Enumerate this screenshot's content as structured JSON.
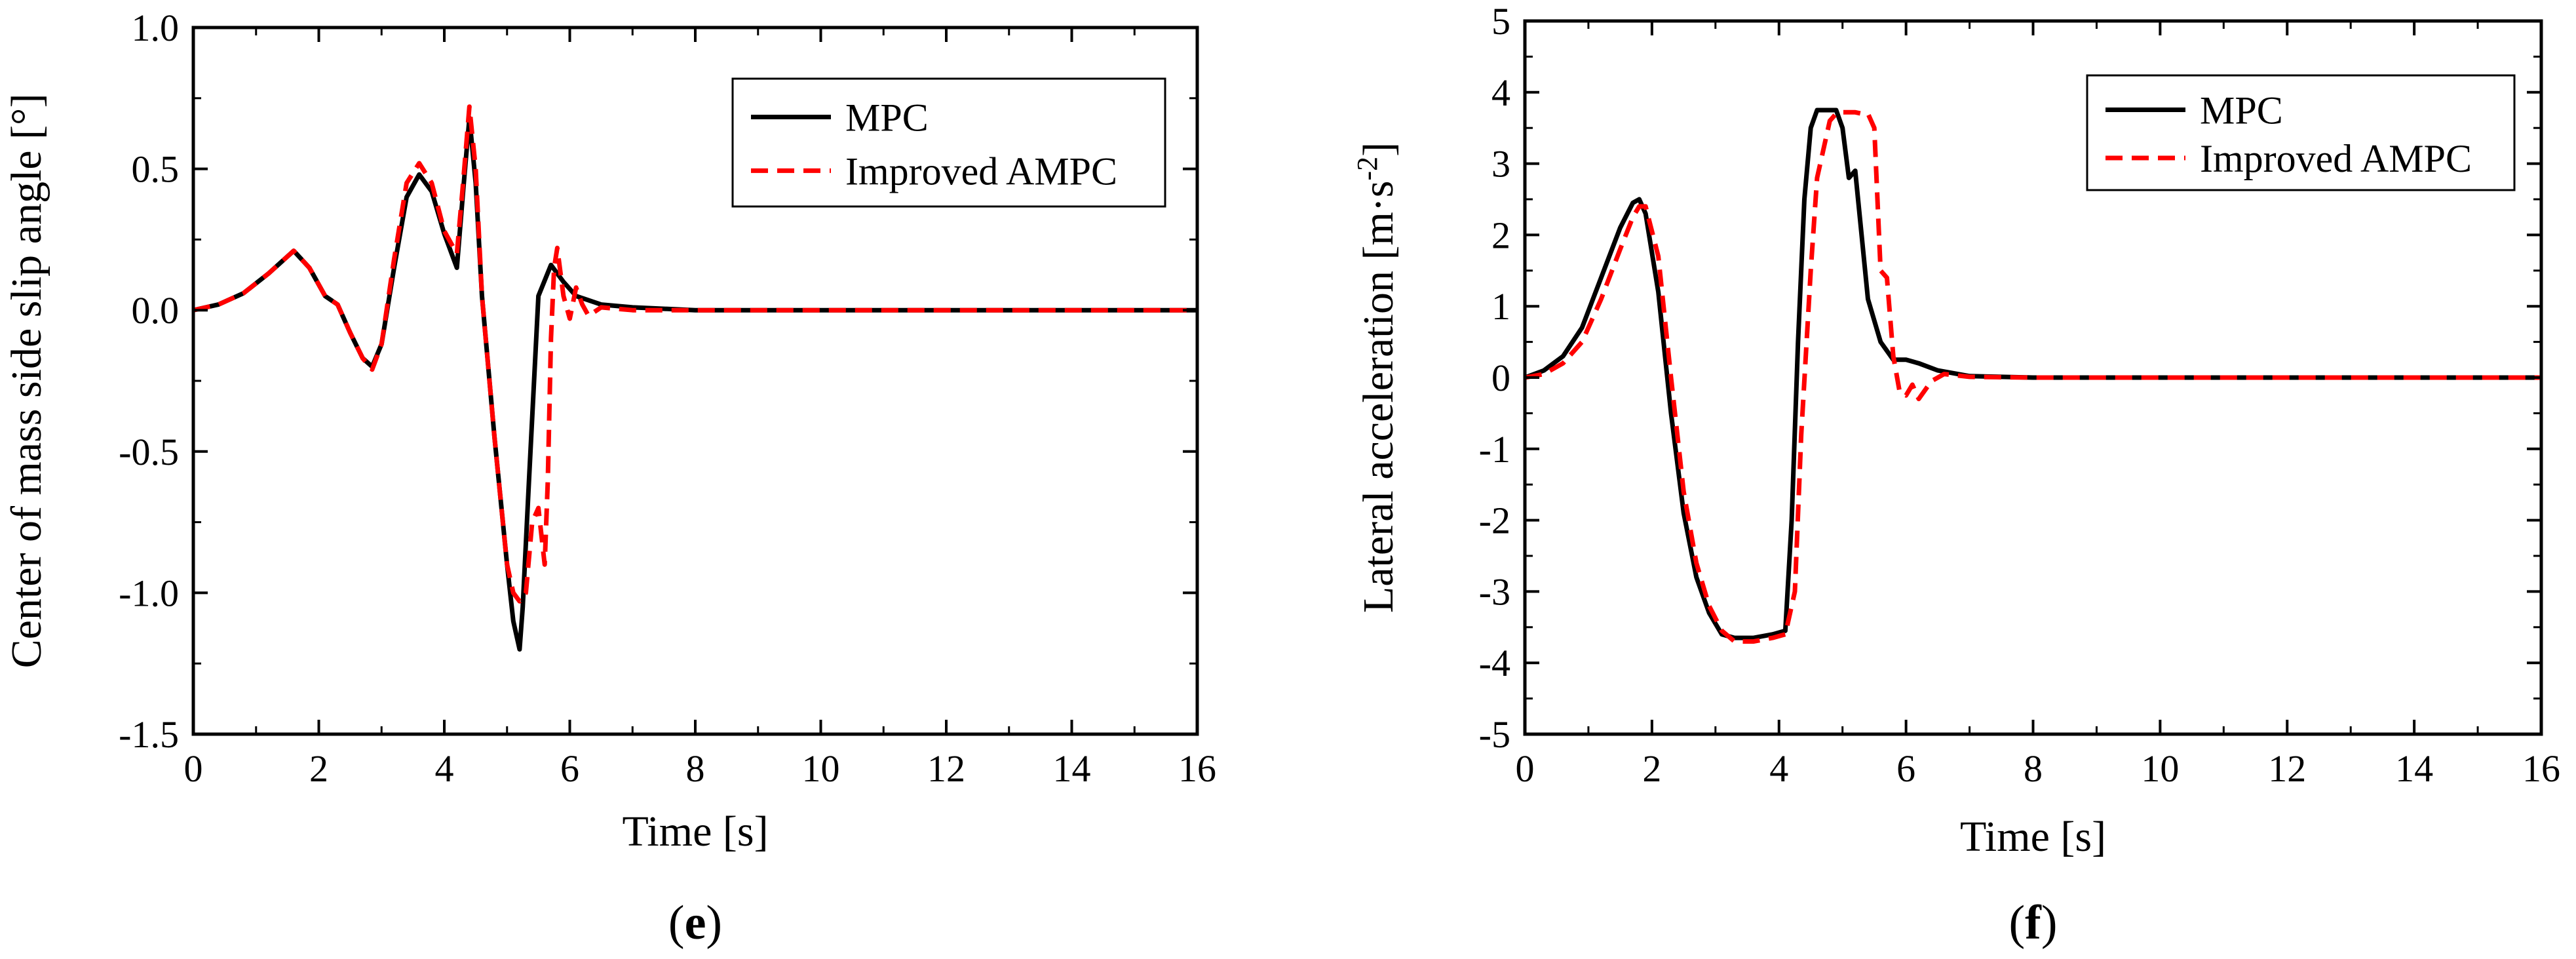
{
  "chart_data": [
    {
      "type": "line",
      "panel_label": "e",
      "xlabel": "Time [s]",
      "ylabel": "Center of mass side slip angle [°]",
      "xlim": [
        0,
        16
      ],
      "ylim": [
        -1.5,
        1.0
      ],
      "xticks": [
        0,
        2,
        4,
        6,
        8,
        10,
        12,
        14,
        16
      ],
      "xtick_labels": [
        "0",
        "2",
        "4",
        "6",
        "8",
        "10",
        "12",
        "14",
        "16"
      ],
      "yticks": [
        -1.5,
        -1.0,
        -0.5,
        0.0,
        0.5,
        1.0
      ],
      "ytick_labels": [
        "-1.5",
        "-1.0",
        "-0.5",
        "0.0",
        "0.5",
        "1.0"
      ],
      "legend_position": "top-right",
      "series": [
        {
          "name": "MPC",
          "style": "solid",
          "color": "#000000",
          "x": [
            0,
            0.4,
            0.8,
            1.2,
            1.6,
            1.85,
            2.1,
            2.3,
            2.5,
            2.7,
            2.85,
            3.0,
            3.2,
            3.4,
            3.6,
            3.8,
            4.0,
            4.2,
            4.3,
            4.4,
            4.5,
            4.6,
            4.8,
            5.0,
            5.1,
            5.2,
            5.25,
            5.35,
            5.5,
            5.7,
            5.9,
            6.1,
            6.5,
            7.0,
            8,
            10,
            12,
            14,
            16
          ],
          "y": [
            0,
            0.02,
            0.06,
            0.13,
            0.21,
            0.15,
            0.05,
            0.02,
            -0.08,
            -0.17,
            -0.2,
            -0.12,
            0.15,
            0.4,
            0.48,
            0.42,
            0.27,
            0.15,
            0.42,
            0.68,
            0.45,
            0.05,
            -0.45,
            -0.9,
            -1.1,
            -1.2,
            -1.05,
            -0.6,
            0.05,
            0.16,
            0.1,
            0.05,
            0.02,
            0.01,
            0,
            0,
            0,
            0,
            0
          ]
        },
        {
          "name": "Improved AMPC",
          "style": "dashed",
          "color": "#ff0000",
          "x": [
            0,
            0.4,
            0.8,
            1.2,
            1.6,
            1.85,
            2.1,
            2.3,
            2.5,
            2.7,
            2.85,
            3.0,
            3.2,
            3.4,
            3.6,
            3.8,
            4.0,
            4.2,
            4.3,
            4.4,
            4.5,
            4.6,
            4.8,
            5.0,
            5.1,
            5.2,
            5.3,
            5.4,
            5.5,
            5.6,
            5.65,
            5.7,
            5.75,
            5.8,
            5.9,
            6.0,
            6.1,
            6.2,
            6.3,
            6.5,
            7.0,
            8,
            10,
            12,
            14,
            16
          ],
          "y": [
            0,
            0.02,
            0.06,
            0.13,
            0.21,
            0.15,
            0.05,
            0.02,
            -0.08,
            -0.17,
            -0.21,
            -0.12,
            0.18,
            0.45,
            0.52,
            0.45,
            0.28,
            0.2,
            0.45,
            0.72,
            0.5,
            0.05,
            -0.45,
            -0.9,
            -1.0,
            -1.03,
            -1.0,
            -0.75,
            -0.7,
            -0.9,
            -0.6,
            -0.1,
            0.15,
            0.22,
            0.05,
            -0.03,
            0.08,
            0.02,
            -0.02,
            0.01,
            0,
            0,
            0,
            0,
            0,
            0
          ]
        }
      ]
    },
    {
      "type": "line",
      "panel_label": "f",
      "xlabel": "Time [s]",
      "ylabel": "Lateral acceleration [m·s",
      "ylabel_exponent": "-2",
      "ylabel_end": "]",
      "xlim": [
        0,
        16
      ],
      "ylim": [
        -5,
        5
      ],
      "xticks": [
        0,
        2,
        4,
        6,
        8,
        10,
        12,
        14,
        16
      ],
      "xtick_labels": [
        "0",
        "2",
        "4",
        "6",
        "8",
        "10",
        "12",
        "14",
        "16"
      ],
      "yticks": [
        -5,
        -4,
        -3,
        -2,
        -1,
        0,
        1,
        2,
        3,
        4,
        5
      ],
      "ytick_labels": [
        "-5",
        "-4",
        "-3",
        "-2",
        "-1",
        "0",
        "1",
        "2",
        "3",
        "4",
        "5"
      ],
      "legend_position": "top-right",
      "series": [
        {
          "name": "MPC",
          "style": "solid",
          "color": "#000000",
          "x": [
            0,
            0.3,
            0.6,
            0.9,
            1.2,
            1.5,
            1.7,
            1.8,
            1.9,
            2.1,
            2.3,
            2.5,
            2.7,
            2.9,
            3.1,
            3.3,
            3.6,
            3.9,
            4.1,
            4.2,
            4.3,
            4.4,
            4.5,
            4.6,
            4.8,
            4.9,
            5.0,
            5.1,
            5.2,
            5.3,
            5.4,
            5.6,
            5.8,
            5.9,
            6.0,
            6.2,
            6.5,
            7.0,
            8,
            10,
            12,
            14,
            16
          ],
          "y": [
            0,
            0.1,
            0.3,
            0.7,
            1.4,
            2.1,
            2.45,
            2.5,
            2.3,
            1.2,
            -0.5,
            -1.9,
            -2.8,
            -3.3,
            -3.6,
            -3.65,
            -3.65,
            -3.6,
            -3.55,
            -2.0,
            0.5,
            2.5,
            3.5,
            3.75,
            3.75,
            3.75,
            3.5,
            2.8,
            2.9,
            2.0,
            1.1,
            0.5,
            0.25,
            0.25,
            0.25,
            0.2,
            0.1,
            0.02,
            0,
            0,
            0,
            0,
            0
          ]
        },
        {
          "name": "Improved AMPC",
          "style": "dashed",
          "color": "#ff0000",
          "x": [
            0,
            0.3,
            0.6,
            0.9,
            1.2,
            1.5,
            1.7,
            1.8,
            1.9,
            2.1,
            2.3,
            2.5,
            2.7,
            2.9,
            3.1,
            3.3,
            3.6,
            3.9,
            4.1,
            4.25,
            4.35,
            4.5,
            4.6,
            4.8,
            4.9,
            5.0,
            5.2,
            5.3,
            5.4,
            5.5,
            5.6,
            5.7,
            5.8,
            5.9,
            6.0,
            6.1,
            6.2,
            6.4,
            6.6,
            7.0,
            8,
            10,
            12,
            14,
            16
          ],
          "y": [
            0,
            0.05,
            0.2,
            0.5,
            1.1,
            1.8,
            2.25,
            2.4,
            2.4,
            1.7,
            0.0,
            -1.6,
            -2.6,
            -3.2,
            -3.55,
            -3.7,
            -3.7,
            -3.65,
            -3.6,
            -3.0,
            -0.8,
            1.5,
            2.8,
            3.6,
            3.7,
            3.72,
            3.72,
            3.7,
            3.7,
            3.5,
            1.5,
            1.4,
            0.3,
            -0.2,
            -0.25,
            -0.1,
            -0.3,
            -0.05,
            0.05,
            0.01,
            0,
            0,
            0,
            0,
            0
          ]
        }
      ]
    }
  ]
}
